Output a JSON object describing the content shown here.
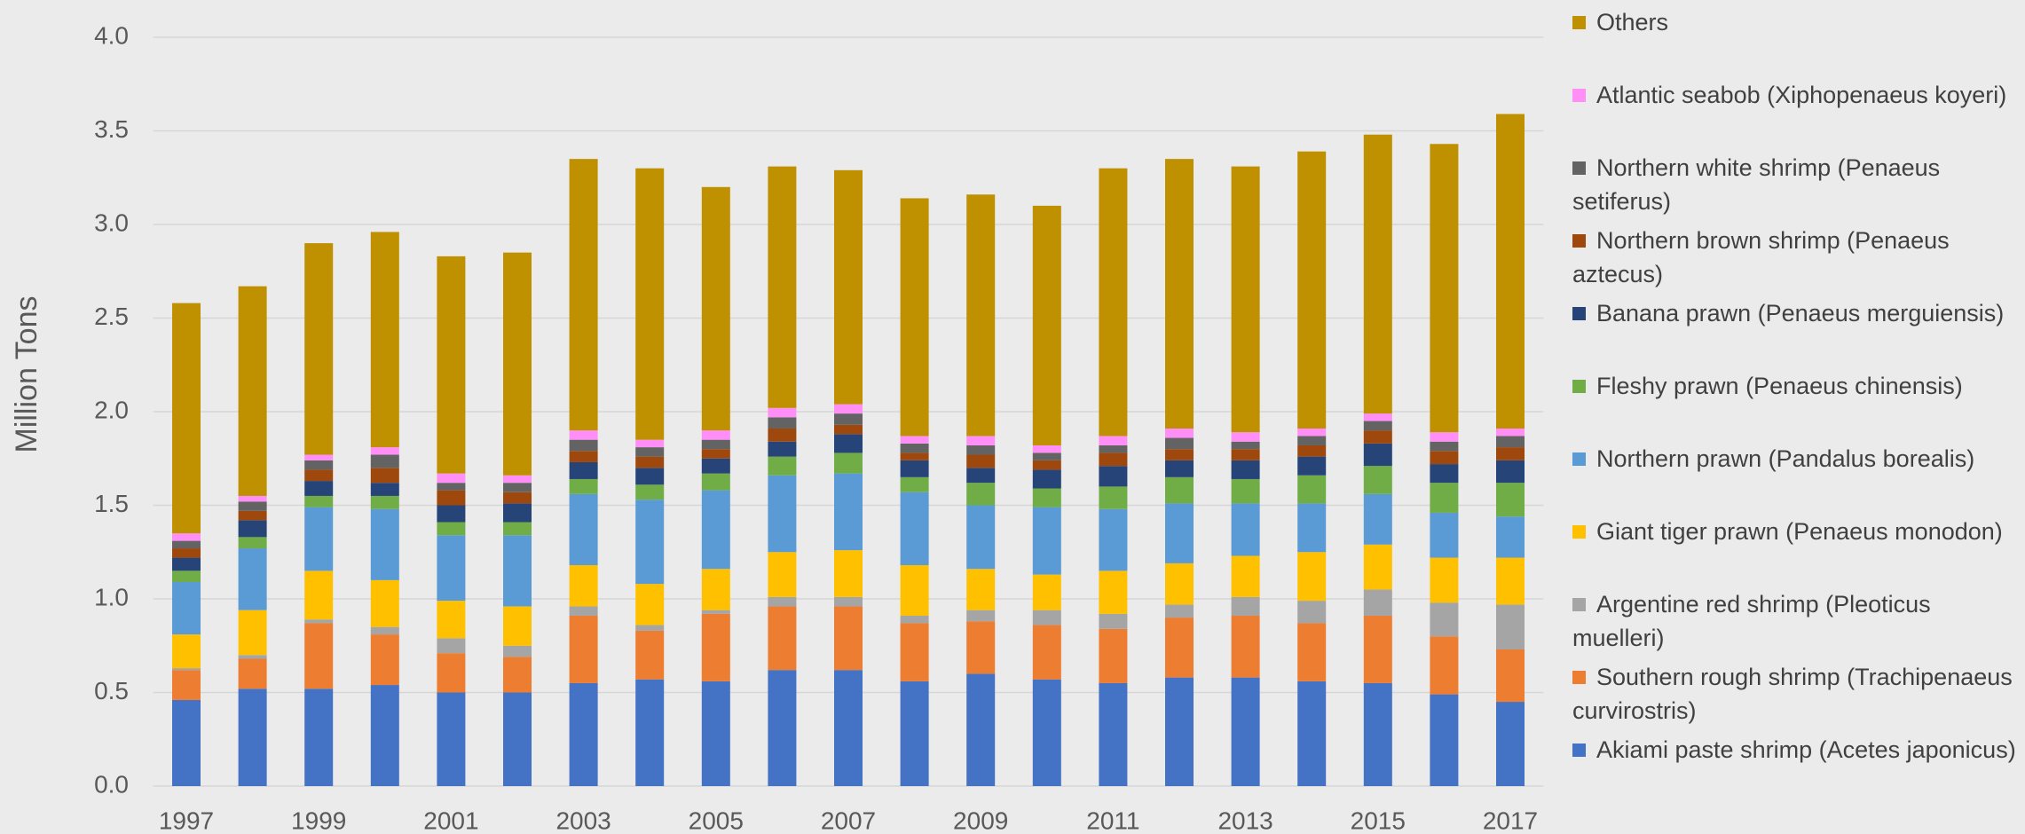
{
  "chart_data": {
    "type": "stacked_bar",
    "y_label": "Million Tons",
    "categories": [
      "1997",
      null,
      "1999",
      null,
      "2001",
      null,
      "2003",
      null,
      "2005",
      null,
      "2007",
      null,
      "2009",
      null,
      "2011",
      null,
      "2013",
      null,
      "2015",
      null,
      "2017"
    ],
    "ylim": [
      0,
      4
    ],
    "yticks": [
      {
        "value": 0,
        "label": "0.0"
      },
      {
        "value": 0.5,
        "label": "0.5"
      },
      {
        "value": 1,
        "label": "1.0"
      },
      {
        "value": 1.5,
        "label": "1.5"
      },
      {
        "value": 2,
        "label": "2.0"
      },
      {
        "value": 2.5,
        "label": "2.5"
      },
      {
        "value": 3,
        "label": "3.0"
      },
      {
        "value": 3.5,
        "label": "3.5"
      },
      {
        "value": 4,
        "label": "4.0"
      }
    ],
    "grid": true,
    "legend": "right",
    "series": [
      {
        "name": "Akiami paste shrimp (Acetes japonicus)",
        "color": "#4472c4",
        "values": [
          0.46,
          0.52,
          0.52,
          0.54,
          0.5,
          0.5,
          0.55,
          0.57,
          0.56,
          0.62,
          0.62,
          0.56,
          0.6,
          0.57,
          0.55,
          0.58,
          0.58,
          0.56,
          0.55,
          0.49,
          0.45
        ]
      },
      {
        "name": "Southern rough shrimp (Trachipenaeus curvirostris)",
        "color": "#ed7d31",
        "values": [
          0.16,
          0.16,
          0.35,
          0.27,
          0.21,
          0.19,
          0.36,
          0.26,
          0.36,
          0.34,
          0.34,
          0.31,
          0.28,
          0.29,
          0.29,
          0.32,
          0.33,
          0.31,
          0.36,
          0.31,
          0.28
        ]
      },
      {
        "name": "Argentine red shrimp (Pleoticus muelleri)",
        "color": "#a5a5a5",
        "values": [
          0.01,
          0.02,
          0.02,
          0.04,
          0.08,
          0.06,
          0.05,
          0.03,
          0.02,
          0.05,
          0.05,
          0.04,
          0.06,
          0.08,
          0.08,
          0.07,
          0.1,
          0.12,
          0.14,
          0.18,
          0.24
        ]
      },
      {
        "name": "Giant tiger prawn (Penaeus monodon)",
        "color": "#ffc000",
        "values": [
          0.18,
          0.24,
          0.26,
          0.25,
          0.2,
          0.21,
          0.22,
          0.22,
          0.22,
          0.24,
          0.25,
          0.27,
          0.22,
          0.19,
          0.23,
          0.22,
          0.22,
          0.26,
          0.24,
          0.24,
          0.25
        ]
      },
      {
        "name": "Northern prawn (Pandalus borealis)",
        "color": "#5b9bd5",
        "values": [
          0.28,
          0.33,
          0.34,
          0.38,
          0.35,
          0.38,
          0.38,
          0.45,
          0.42,
          0.41,
          0.41,
          0.39,
          0.34,
          0.36,
          0.33,
          0.32,
          0.28,
          0.26,
          0.27,
          0.24,
          0.22
        ]
      },
      {
        "name": "Fleshy prawn (Penaeus chinensis)",
        "color": "#70ad47",
        "values": [
          0.06,
          0.06,
          0.06,
          0.07,
          0.07,
          0.07,
          0.08,
          0.08,
          0.09,
          0.1,
          0.11,
          0.08,
          0.12,
          0.1,
          0.12,
          0.14,
          0.13,
          0.15,
          0.15,
          0.16,
          0.18
        ]
      },
      {
        "name": "Banana prawn (Penaeus merguiensis)",
        "color": "#264478",
        "values": [
          0.07,
          0.09,
          0.08,
          0.07,
          0.09,
          0.1,
          0.09,
          0.09,
          0.08,
          0.08,
          0.1,
          0.09,
          0.08,
          0.1,
          0.11,
          0.09,
          0.1,
          0.1,
          0.12,
          0.1,
          0.12
        ]
      },
      {
        "name": "Northern brown shrimp (Penaeus aztecus)",
        "color": "#9e480e",
        "values": [
          0.05,
          0.05,
          0.06,
          0.08,
          0.08,
          0.06,
          0.06,
          0.06,
          0.05,
          0.07,
          0.05,
          0.04,
          0.07,
          0.05,
          0.07,
          0.06,
          0.06,
          0.06,
          0.07,
          0.07,
          0.07
        ]
      },
      {
        "name": "Northern white shrimp (Penaeus setiferus)",
        "color": "#636363",
        "values": [
          0.04,
          0.05,
          0.05,
          0.07,
          0.04,
          0.05,
          0.06,
          0.05,
          0.05,
          0.06,
          0.06,
          0.05,
          0.05,
          0.04,
          0.04,
          0.06,
          0.04,
          0.05,
          0.05,
          0.05,
          0.06
        ]
      },
      {
        "name": "Atlantic seabob (Xiphopenaeus koyeri)",
        "color": "#ff8ef7",
        "values": [
          0.04,
          0.03,
          0.03,
          0.04,
          0.05,
          0.04,
          0.05,
          0.04,
          0.05,
          0.05,
          0.05,
          0.04,
          0.05,
          0.04,
          0.05,
          0.05,
          0.05,
          0.04,
          0.04,
          0.05,
          0.04
        ]
      },
      {
        "name": "Others",
        "color": "#bf9000",
        "values": [
          1.23,
          1.12,
          1.13,
          1.15,
          1.16,
          1.19,
          1.45,
          1.45,
          1.3,
          1.29,
          1.25,
          1.27,
          1.29,
          1.28,
          1.43,
          1.44,
          1.42,
          1.48,
          1.49,
          1.54,
          1.68
        ]
      }
    ]
  }
}
